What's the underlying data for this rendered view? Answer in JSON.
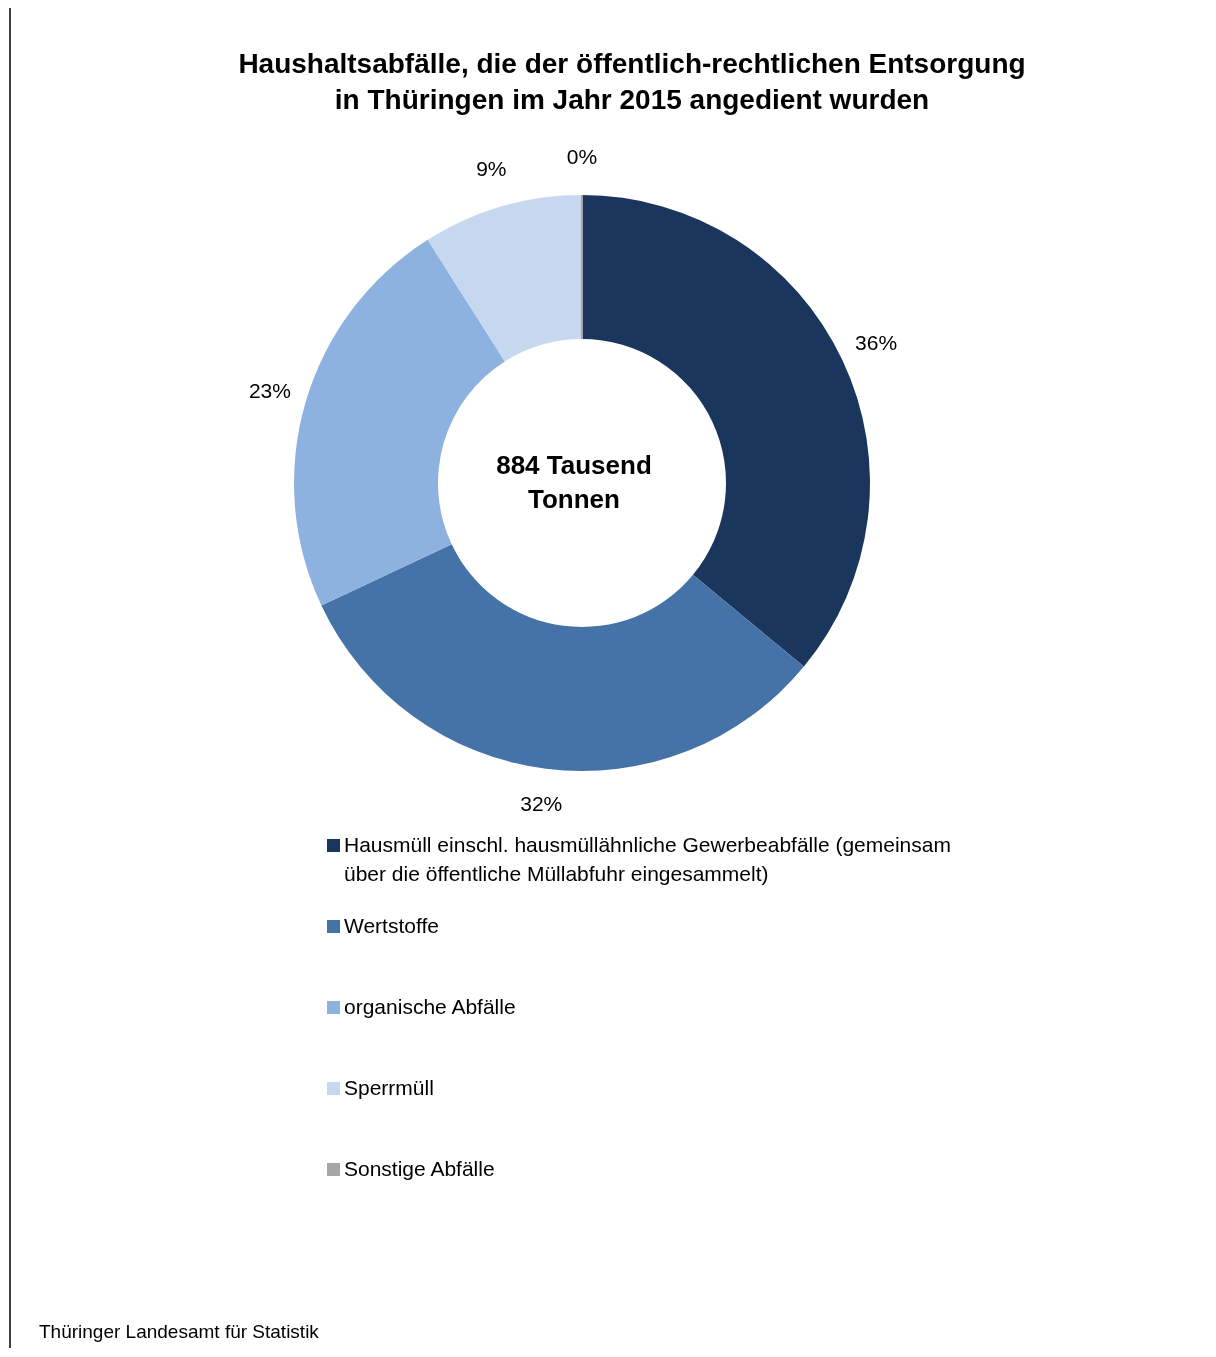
{
  "chart_data": {
    "type": "donut",
    "title": "Haushaltsabfälle, die der öffentlich-rechtlichen Entsorgung in Thüringen im Jahr 2015 angedient wurden",
    "categories": [
      "Hausmüll einschl. hausmüllähnliche Gewerbeabfälle (gemeinsam über die öffentliche Müllabfuhr eingesammelt)",
      "Wertstoffe",
      "organische Abfälle",
      "Sperrmüll",
      "Sonstige Abfälle"
    ],
    "values": [
      36,
      32,
      23,
      9,
      0
    ],
    "colors": [
      "#1b365d",
      "#4572a7",
      "#8eb2e0",
      "#c6d8ef",
      "#a6a6a6"
    ],
    "value_labels": [
      "36%",
      "32%",
      "23%",
      "9%",
      "0%"
    ],
    "legend": "bottom",
    "annotations": [
      "884 Tausend Tonnen",
      "Thüringer Landesamt für Statistik"
    ]
  }
}
